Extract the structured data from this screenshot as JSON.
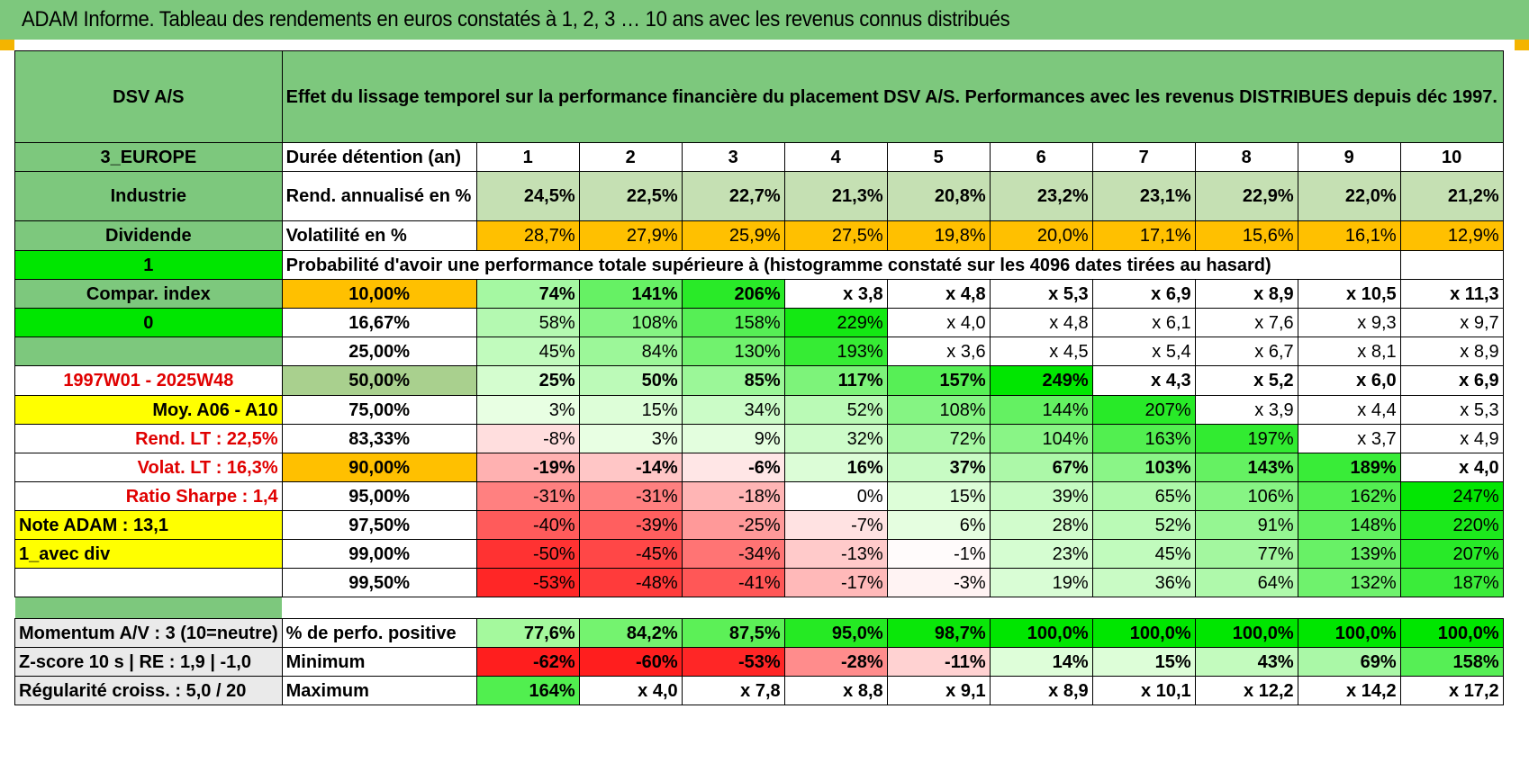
{
  "header": {
    "title": "ADAM Informe. Tableau des rendements en euros constatés à 1, 2, 3 … 10 ans avec les revenus connus distribués"
  },
  "left": {
    "name": "DSV A/S",
    "region": "3_EUROPE",
    "sector": "Industrie",
    "dividend": "Dividende",
    "flag1": "1",
    "compar_index": "Compar. index",
    "flag0": "0",
    "period": "1997W01 - 2025W48",
    "moy": "Moy. A06 - A10",
    "rend_lt": "Rend. LT :    22,5%",
    "volat_lt": "Volat. LT :    16,3%",
    "sharpe": "Ratio Sharpe :     1,4",
    "note": "Note ADAM : 13,1",
    "avec_div": "1_avec div",
    "momentum": "Momentum A/V : 3 (10=neutre)",
    "zscore": "Z-score 10 s | RE : 1,9 | -1,0",
    "regularite": "Régularité croiss. : 5,0 / 20"
  },
  "description": "Effet du lissage temporel sur la performance financière du placement DSV A/S. Performances avec les revenus DISTRIBUES depuis déc 1997.",
  "years": [
    "1",
    "2",
    "3",
    "4",
    "5",
    "6",
    "7",
    "8",
    "9",
    "10"
  ],
  "row_labels": {
    "duree": "Durée détention (an)",
    "rend": "Rend. annualisé en %",
    "vol": "Volatilité en %",
    "prob": "Probabilité d'avoir une performance totale supérieure à (histogramme constaté sur les 4096 dates tirées au hasard)",
    "pos": "% de perfo. positive",
    "min": "Minimum",
    "max": "Maximum"
  },
  "rend": [
    "24,5%",
    "22,5%",
    "22,7%",
    "21,3%",
    "20,8%",
    "23,2%",
    "23,1%",
    "22,9%",
    "22,0%",
    "21,2%"
  ],
  "vol": [
    "28,7%",
    "27,9%",
    "25,9%",
    "27,5%",
    "19,8%",
    "20,0%",
    "17,1%",
    "15,6%",
    "16,1%",
    "12,9%"
  ],
  "prob_rows": [
    {
      "q": "10,00%",
      "v": [
        "74%",
        "141%",
        "206%",
        "x 3,8",
        "x 4,8",
        "x 5,3",
        "x 6,9",
        "x 8,9",
        "x 10,5",
        "x 11,3"
      ]
    },
    {
      "q": "16,67%",
      "v": [
        "58%",
        "108%",
        "158%",
        "229%",
        "x 4,0",
        "x 4,8",
        "x 6,1",
        "x 7,6",
        "x 9,3",
        "x 9,7"
      ]
    },
    {
      "q": "25,00%",
      "v": [
        "45%",
        "84%",
        "130%",
        "193%",
        "x 3,6",
        "x 4,5",
        "x 5,4",
        "x 6,7",
        "x 8,1",
        "x 8,9"
      ]
    },
    {
      "q": "50,00%",
      "v": [
        "25%",
        "50%",
        "85%",
        "117%",
        "157%",
        "249%",
        "x 4,3",
        "x 5,2",
        "x 6,0",
        "x 6,9"
      ]
    },
    {
      "q": "75,00%",
      "v": [
        "3%",
        "15%",
        "34%",
        "52%",
        "108%",
        "144%",
        "207%",
        "x 3,9",
        "x 4,4",
        "x 5,3"
      ]
    },
    {
      "q": "83,33%",
      "v": [
        "-8%",
        "3%",
        "9%",
        "32%",
        "72%",
        "104%",
        "163%",
        "197%",
        "x 3,7",
        "x 4,9"
      ]
    },
    {
      "q": "90,00%",
      "v": [
        "-19%",
        "-14%",
        "-6%",
        "16%",
        "37%",
        "67%",
        "103%",
        "143%",
        "189%",
        "x 4,0"
      ]
    },
    {
      "q": "95,00%",
      "v": [
        "-31%",
        "-31%",
        "-18%",
        "0%",
        "15%",
        "39%",
        "65%",
        "106%",
        "162%",
        "247%"
      ]
    },
    {
      "q": "97,50%",
      "v": [
        "-40%",
        "-39%",
        "-25%",
        "-7%",
        "6%",
        "28%",
        "52%",
        "91%",
        "148%",
        "220%"
      ]
    },
    {
      "q": "99,00%",
      "v": [
        "-50%",
        "-45%",
        "-34%",
        "-13%",
        "-1%",
        "23%",
        "45%",
        "77%",
        "139%",
        "207%"
      ]
    },
    {
      "q": "99,50%",
      "v": [
        "-53%",
        "-48%",
        "-41%",
        "-17%",
        "-3%",
        "19%",
        "36%",
        "64%",
        "132%",
        "187%"
      ]
    }
  ],
  "pos": [
    "77,6%",
    "84,2%",
    "87,5%",
    "95,0%",
    "98,7%",
    "100,0%",
    "100,0%",
    "100,0%",
    "100,0%",
    "100,0%"
  ],
  "min": [
    "-62%",
    "-60%",
    "-53%",
    "-28%",
    "-11%",
    "14%",
    "15%",
    "43%",
    "69%",
    "158%"
  ],
  "max": [
    "164%",
    "x 4,0",
    "x 7,8",
    "x 8,8",
    "x 9,1",
    "x 8,9",
    "x 10,1",
    "x 12,2",
    "x 14,2",
    "x 17,2"
  ],
  "colors": {
    "header_green": "#7dc87d",
    "bright_green": "#00e600",
    "orange": "#ffc000",
    "yellow": "#ffff00",
    "label_red": "#e00000",
    "light_green": "#c5e0b3"
  }
}
